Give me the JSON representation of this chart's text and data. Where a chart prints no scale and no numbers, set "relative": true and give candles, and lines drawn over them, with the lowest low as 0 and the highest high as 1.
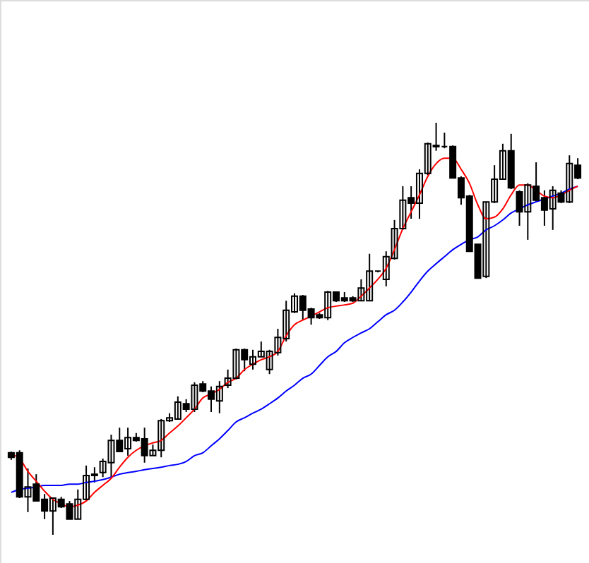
{
  "chart_data": {
    "type": "candlestick",
    "relative": true,
    "categories": [
      null,
      null,
      null,
      null,
      null,
      null,
      null,
      null,
      null,
      null,
      null,
      null,
      null,
      null,
      null,
      null,
      null,
      null,
      null,
      null,
      null,
      null,
      null,
      null,
      null,
      null,
      null,
      null,
      null,
      null,
      null,
      null,
      null,
      null,
      null,
      null,
      null,
      null,
      null,
      null,
      null,
      null,
      null,
      null,
      null,
      null,
      null,
      null,
      null,
      null,
      null,
      null,
      null,
      null,
      null,
      null,
      null,
      null,
      null,
      null,
      null,
      null,
      null,
      null,
      null,
      null,
      null,
      null,
      null
    ],
    "ohlc": [
      [
        0.199,
        0.202,
        0.182,
        0.188
      ],
      [
        0.199,
        0.205,
        0.089,
        0.092
      ],
      [
        0.092,
        0.161,
        0.055,
        0.116
      ],
      [
        0.123,
        0.147,
        0.082,
        0.082
      ],
      [
        0.086,
        0.099,
        0.038,
        0.058
      ],
      [
        0.058,
        0.089,
        0,
        0.089
      ],
      [
        0.086,
        0.092,
        0.065,
        0.068
      ],
      [
        0.075,
        0.082,
        0.038,
        0.038
      ],
      [
        0.038,
        0.11,
        0.038,
        0.086
      ],
      [
        0.086,
        0.168,
        0.082,
        0.144
      ],
      [
        0.144,
        0.164,
        0.127,
        0.147
      ],
      [
        0.151,
        0.185,
        0.14,
        0.178
      ],
      [
        0.175,
        0.243,
        0.14,
        0.229
      ],
      [
        0.229,
        0.26,
        0.202,
        0.202
      ],
      [
        0.209,
        0.26,
        0.192,
        0.236
      ],
      [
        0.236,
        0.247,
        0.226,
        0.229
      ],
      [
        0.233,
        0.26,
        0.175,
        0.192
      ],
      [
        0.192,
        0.219,
        0.192,
        0.205
      ],
      [
        0.205,
        0.281,
        0.188,
        0.277
      ],
      [
        0.277,
        0.295,
        0.274,
        0.284
      ],
      [
        0.281,
        0.336,
        0.281,
        0.322
      ],
      [
        0.318,
        0.329,
        0.298,
        0.305
      ],
      [
        0.305,
        0.37,
        0.298,
        0.363
      ],
      [
        0.366,
        0.373,
        0.346,
        0.349
      ],
      [
        0.349,
        0.36,
        0.298,
        0.329
      ],
      [
        0.325,
        0.373,
        0.295,
        0.36
      ],
      [
        0.363,
        0.401,
        0.356,
        0.38
      ],
      [
        0.38,
        0.452,
        0.377,
        0.449
      ],
      [
        0.449,
        0.452,
        0.397,
        0.425
      ],
      [
        0.414,
        0.449,
        0.401,
        0.432
      ],
      [
        0.432,
        0.469,
        0.432,
        0.445
      ],
      [
        0.401,
        0.449,
        0.39,
        0.445
      ],
      [
        0.442,
        0.5,
        0.435,
        0.479
      ],
      [
        0.476,
        0.568,
        0.469,
        0.545
      ],
      [
        0.541,
        0.586,
        0.538,
        0.579
      ],
      [
        0.579,
        0.582,
        0.521,
        0.545
      ],
      [
        0.548,
        0.551,
        0.51,
        0.527
      ],
      [
        0.534,
        0.538,
        0.524,
        0.527
      ],
      [
        0.527,
        0.592,
        0.521,
        0.589
      ],
      [
        0.589,
        0.589,
        0.565,
        0.568
      ],
      [
        0.575,
        0.589,
        0.565,
        0.568
      ],
      [
        0.575,
        0.579,
        0.565,
        0.568
      ],
      [
        0.568,
        0.62,
        0.568,
        0.599
      ],
      [
        0.568,
        0.682,
        0.568,
        0.64
      ],
      [
        0.64,
        0.64,
        0.637,
        0.64
      ],
      [
        0.62,
        0.688,
        0.603,
        0.675
      ],
      [
        0.671,
        0.764,
        0.668,
        0.743
      ],
      [
        0.743,
        0.846,
        0.74,
        0.812
      ],
      [
        0.818,
        0.846,
        0.767,
        0.805
      ],
      [
        0.805,
        0.887,
        0.767,
        0.877
      ],
      [
        0.877,
        0.952,
        0.873,
        0.949
      ],
      [
        0.942,
        1,
        0.932,
        0.945
      ],
      [
        0.942,
        0.976,
        0.938,
        0.942
      ],
      [
        0.942,
        0.945,
        0.866,
        0.866
      ],
      [
        0.866,
        0.87,
        0.801,
        0.818
      ],
      [
        0.822,
        0.825,
        0.688,
        0.688
      ],
      [
        0.705,
        0.705,
        0.623,
        0.623
      ],
      [
        0.627,
        0.808,
        0.623,
        0.808
      ],
      [
        0.808,
        0.897,
        0.805,
        0.863
      ],
      [
        0.863,
        0.949,
        0.863,
        0.932
      ],
      [
        0.932,
        0.973,
        0.839,
        0.842
      ],
      [
        0.832,
        0.836,
        0.75,
        0.784
      ],
      [
        0.784,
        0.853,
        0.716,
        0.849
      ],
      [
        0.846,
        0.904,
        0.808,
        0.812
      ],
      [
        0.818,
        0.836,
        0.75,
        0.788
      ],
      [
        0.791,
        0.846,
        0.74,
        0.836
      ],
      [
        0.829,
        0.836,
        0.805,
        0.808
      ],
      [
        0.808,
        0.921,
        0.805,
        0.901
      ],
      [
        0.897,
        0.914,
        0.863,
        0.866
      ]
    ],
    "series": [
      {
        "type": "line",
        "color": "#0000ff",
        "values": [
          0.103,
          0.11,
          0.113,
          0.116,
          0.12,
          0.12,
          0.12,
          0.123,
          0.123,
          0.127,
          0.13,
          0.134,
          0.14,
          0.147,
          0.151,
          0.154,
          0.158,
          0.161,
          0.164,
          0.168,
          0.171,
          0.178,
          0.192,
          0.199,
          0.216,
          0.233,
          0.253,
          0.274,
          0.284,
          0.295,
          0.305,
          0.318,
          0.332,
          0.349,
          0.363,
          0.38,
          0.39,
          0.411,
          0.432,
          0.445,
          0.466,
          0.479,
          0.49,
          0.5,
          0.517,
          0.534,
          0.545,
          0.565,
          0.589,
          0.616,
          0.64,
          0.658,
          0.675,
          0.692,
          0.705,
          0.716,
          0.723,
          0.74,
          0.75,
          0.764,
          0.781,
          0.791,
          0.801,
          0.808,
          0.815,
          0.822,
          0.829,
          0.839,
          0.846
        ]
      },
      {
        "type": "line",
        "color": "#ff0000",
        "values": [
          0.195,
          0.185,
          0.154,
          0.13,
          0.106,
          0.086,
          0.075,
          0.068,
          0.072,
          0.082,
          0.103,
          0.12,
          0.137,
          0.164,
          0.188,
          0.205,
          0.216,
          0.223,
          0.229,
          0.247,
          0.264,
          0.284,
          0.305,
          0.332,
          0.342,
          0.353,
          0.37,
          0.38,
          0.401,
          0.414,
          0.425,
          0.432,
          0.445,
          0.483,
          0.51,
          0.521,
          0.531,
          0.541,
          0.551,
          0.555,
          0.558,
          0.562,
          0.579,
          0.599,
          0.62,
          0.647,
          0.692,
          0.743,
          0.784,
          0.825,
          0.87,
          0.901,
          0.914,
          0.914,
          0.887,
          0.853,
          0.801,
          0.767,
          0.771,
          0.791,
          0.825,
          0.849,
          0.849,
          0.836,
          0.822,
          0.818,
          0.825,
          0.836,
          0.846
        ]
      }
    ]
  }
}
